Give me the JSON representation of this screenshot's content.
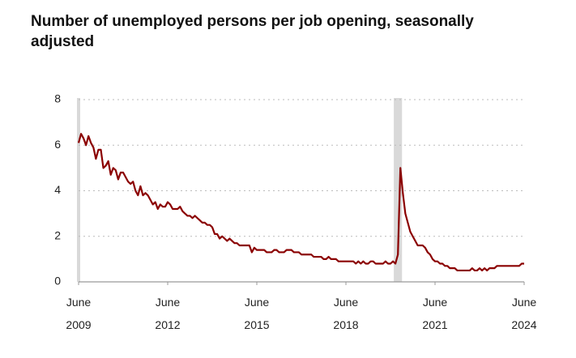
{
  "chart_data": {
    "type": "line",
    "title": "Number of unemployed persons per job opening, seasonally adjusted",
    "x": [
      "2009-06",
      "2009-07",
      "2009-08",
      "2009-09",
      "2009-10",
      "2009-11",
      "2009-12",
      "2010-01",
      "2010-02",
      "2010-03",
      "2010-04",
      "2010-05",
      "2010-06",
      "2010-07",
      "2010-08",
      "2010-09",
      "2010-10",
      "2010-11",
      "2010-12",
      "2011-01",
      "2011-02",
      "2011-03",
      "2011-04",
      "2011-05",
      "2011-06",
      "2011-07",
      "2011-08",
      "2011-09",
      "2011-10",
      "2011-11",
      "2011-12",
      "2012-01",
      "2012-02",
      "2012-03",
      "2012-04",
      "2012-05",
      "2012-06",
      "2012-07",
      "2012-08",
      "2012-09",
      "2012-10",
      "2012-11",
      "2012-12",
      "2013-01",
      "2013-02",
      "2013-03",
      "2013-04",
      "2013-05",
      "2013-06",
      "2013-07",
      "2013-08",
      "2013-09",
      "2013-10",
      "2013-11",
      "2013-12",
      "2014-01",
      "2014-02",
      "2014-03",
      "2014-04",
      "2014-05",
      "2014-06",
      "2014-07",
      "2014-08",
      "2014-09",
      "2014-10",
      "2014-11",
      "2014-12",
      "2015-01",
      "2015-02",
      "2015-03",
      "2015-04",
      "2015-05",
      "2015-06",
      "2015-07",
      "2015-08",
      "2015-09",
      "2015-10",
      "2015-11",
      "2015-12",
      "2016-01",
      "2016-02",
      "2016-03",
      "2016-04",
      "2016-05",
      "2016-06",
      "2016-07",
      "2016-08",
      "2016-09",
      "2016-10",
      "2016-11",
      "2016-12",
      "2017-01",
      "2017-02",
      "2017-03",
      "2017-04",
      "2017-05",
      "2017-06",
      "2017-07",
      "2017-08",
      "2017-09",
      "2017-10",
      "2017-11",
      "2017-12",
      "2018-01",
      "2018-02",
      "2018-03",
      "2018-04",
      "2018-05",
      "2018-06",
      "2018-07",
      "2018-08",
      "2018-09",
      "2018-10",
      "2018-11",
      "2018-12",
      "2019-01",
      "2019-02",
      "2019-03",
      "2019-04",
      "2019-05",
      "2019-06",
      "2019-07",
      "2019-08",
      "2019-09",
      "2019-10",
      "2019-11",
      "2019-12",
      "2020-01",
      "2020-02",
      "2020-03",
      "2020-04",
      "2020-05",
      "2020-06",
      "2020-07",
      "2020-08",
      "2020-09",
      "2020-10",
      "2020-11",
      "2020-12",
      "2021-01",
      "2021-02",
      "2021-03",
      "2021-04",
      "2021-05",
      "2021-06",
      "2021-07",
      "2021-08",
      "2021-09",
      "2021-10",
      "2021-11",
      "2021-12",
      "2022-01",
      "2022-02",
      "2022-03",
      "2022-04",
      "2022-05",
      "2022-06",
      "2022-07",
      "2022-08",
      "2022-09",
      "2022-10",
      "2022-11",
      "2022-12",
      "2023-01",
      "2023-02",
      "2023-03",
      "2023-04",
      "2023-05",
      "2023-06",
      "2023-07",
      "2023-08",
      "2023-09",
      "2023-10",
      "2023-11",
      "2023-12",
      "2024-01",
      "2024-02",
      "2024-03",
      "2024-04",
      "2024-05",
      "2024-06"
    ],
    "values": [
      6.1,
      6.5,
      6.3,
      6.0,
      6.4,
      6.1,
      5.9,
      5.4,
      5.8,
      5.8,
      5.0,
      5.1,
      5.3,
      4.7,
      5.0,
      4.9,
      4.5,
      4.8,
      4.8,
      4.6,
      4.4,
      4.3,
      4.4,
      4.0,
      3.8,
      4.2,
      3.8,
      3.9,
      3.8,
      3.6,
      3.4,
      3.5,
      3.2,
      3.4,
      3.3,
      3.3,
      3.5,
      3.4,
      3.2,
      3.2,
      3.2,
      3.3,
      3.1,
      3.0,
      2.9,
      2.9,
      2.8,
      2.9,
      2.8,
      2.7,
      2.6,
      2.6,
      2.5,
      2.5,
      2.4,
      2.1,
      2.1,
      1.9,
      2.0,
      1.9,
      1.8,
      1.9,
      1.8,
      1.7,
      1.7,
      1.6,
      1.6,
      1.6,
      1.6,
      1.6,
      1.3,
      1.5,
      1.4,
      1.4,
      1.4,
      1.4,
      1.3,
      1.3,
      1.3,
      1.4,
      1.4,
      1.3,
      1.3,
      1.3,
      1.4,
      1.4,
      1.4,
      1.3,
      1.3,
      1.3,
      1.2,
      1.2,
      1.2,
      1.2,
      1.2,
      1.1,
      1.1,
      1.1,
      1.1,
      1.0,
      1.0,
      1.1,
      1.0,
      1.0,
      1.0,
      0.9,
      0.9,
      0.9,
      0.9,
      0.9,
      0.9,
      0.9,
      0.8,
      0.9,
      0.8,
      0.9,
      0.8,
      0.8,
      0.9,
      0.9,
      0.8,
      0.8,
      0.8,
      0.8,
      0.9,
      0.8,
      0.8,
      0.9,
      0.8,
      1.2,
      5.0,
      3.9,
      3.0,
      2.6,
      2.2,
      2.0,
      1.8,
      1.6,
      1.6,
      1.6,
      1.5,
      1.3,
      1.2,
      1.0,
      0.9,
      0.9,
      0.8,
      0.8,
      0.7,
      0.7,
      0.6,
      0.6,
      0.6,
      0.5,
      0.5,
      0.5,
      0.5,
      0.5,
      0.5,
      0.6,
      0.5,
      0.5,
      0.6,
      0.5,
      0.6,
      0.5,
      0.6,
      0.6,
      0.6,
      0.7,
      0.7,
      0.7,
      0.7,
      0.7,
      0.7,
      0.7,
      0.7,
      0.7,
      0.7,
      0.8,
      0.8
    ],
    "color": "#8b0000",
    "recessions": [
      [
        "2009-06",
        "2009-06"
      ],
      [
        "2020-02",
        "2020-04"
      ]
    ],
    "recession_color": "#d9d9d9",
    "xlim": [
      "2009-06",
      "2024-06"
    ],
    "xticks": [
      {
        "value": "2009-06",
        "label": "June 2009"
      },
      {
        "value": "2012-06",
        "label": "June 2012"
      },
      {
        "value": "2015-06",
        "label": "June 2015"
      },
      {
        "value": "2018-06",
        "label": "June 2018"
      },
      {
        "value": "2021-06",
        "label": "June 2021"
      },
      {
        "value": "2024-06",
        "label": "June 2024"
      }
    ],
    "ylim": [
      0,
      8
    ],
    "yticks": [
      0,
      2,
      4,
      6,
      8
    ],
    "grid": true
  }
}
